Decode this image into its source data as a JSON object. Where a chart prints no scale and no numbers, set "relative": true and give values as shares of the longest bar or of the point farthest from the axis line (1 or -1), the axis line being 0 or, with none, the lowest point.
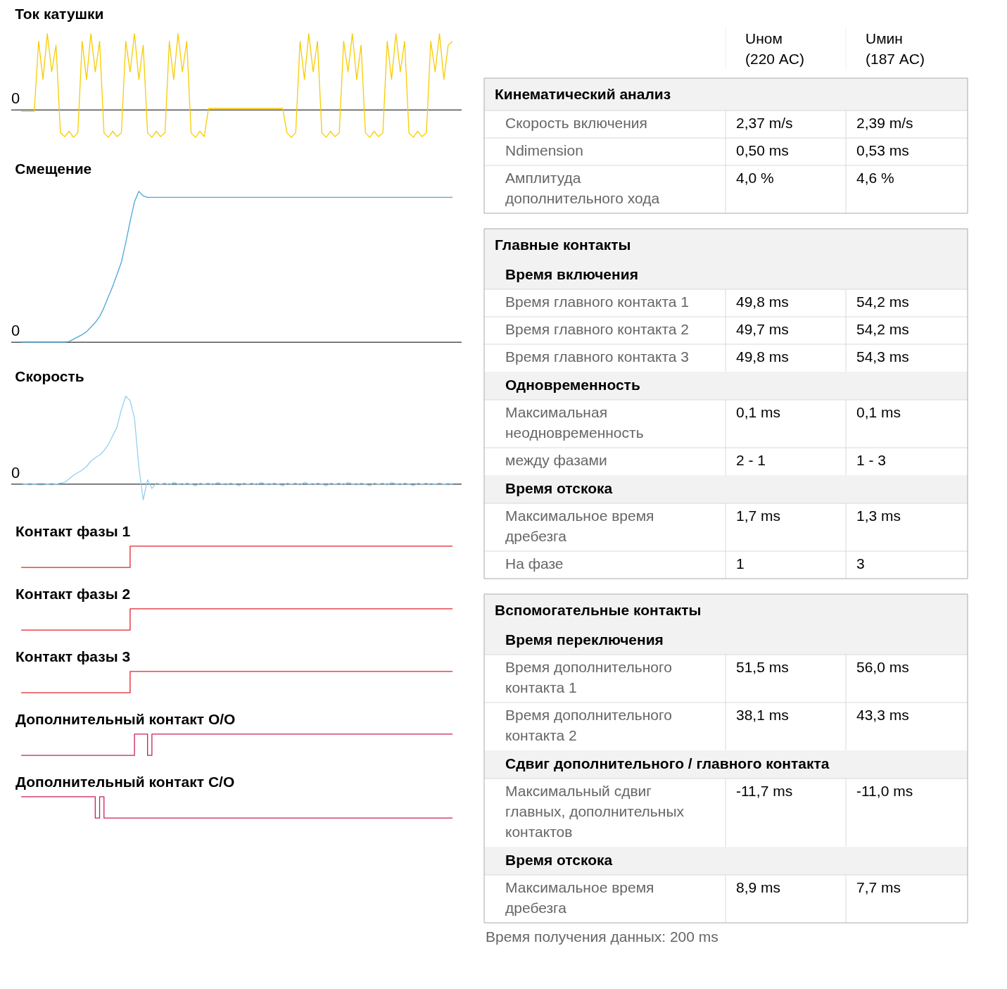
{
  "chart_data": [
    {
      "type": "line",
      "title": "Ток катушки",
      "relative": true,
      "categories": [
        null,
        null,
        null,
        null,
        null,
        null,
        null,
        null,
        null,
        null,
        null,
        null,
        null,
        null,
        null,
        null,
        null,
        null,
        null,
        null,
        null,
        null,
        null,
        null,
        null,
        null,
        null,
        null,
        null,
        null,
        null,
        null,
        null,
        null,
        null,
        null,
        null,
        null,
        null,
        null,
        null,
        null,
        null,
        null,
        null,
        null,
        null,
        null,
        null,
        null,
        null,
        null,
        null,
        null,
        null,
        null,
        null,
        null,
        null,
        null,
        null,
        null,
        null,
        null,
        null,
        null,
        null,
        null,
        null,
        null,
        null,
        null,
        null,
        null,
        null,
        null,
        null,
        null,
        null,
        null,
        null,
        null,
        null,
        null,
        null,
        null,
        null,
        null,
        null,
        null,
        null,
        null,
        null,
        null,
        null,
        null,
        null,
        null,
        null,
        null
      ],
      "series": [
        {
          "color": "#f7cc00",
          "values": [
            -0.02,
            -0.02,
            -0.02,
            -0.02,
            0.9,
            0.4,
            1.0,
            0.5,
            0.85,
            -0.3,
            -0.35,
            -0.28,
            -0.36,
            -0.3,
            0.9,
            0.4,
            1.0,
            0.5,
            0.9,
            -0.3,
            -0.36,
            -0.28,
            -0.35,
            -0.3,
            0.9,
            0.5,
            1.0,
            0.4,
            0.85,
            -0.3,
            -0.36,
            -0.28,
            -0.35,
            -0.3,
            0.9,
            0.4,
            1.0,
            0.5,
            0.9,
            -0.3,
            -0.36,
            -0.28,
            -0.35,
            0.02,
            0.02,
            0.02,
            0.02,
            0.02,
            0.02,
            0.02,
            0.02,
            0.02,
            0.02,
            0.02,
            0.02,
            0.02,
            0.02,
            0.02,
            0.02,
            0.02,
            0.02,
            -0.3,
            -0.36,
            -0.3,
            0.9,
            0.4,
            1.0,
            0.5,
            0.9,
            -0.3,
            -0.36,
            -0.28,
            -0.35,
            -0.3,
            0.9,
            0.5,
            1.0,
            0.4,
            0.85,
            -0.3,
            -0.36,
            -0.28,
            -0.35,
            -0.3,
            0.9,
            0.4,
            1.0,
            0.5,
            0.9,
            -0.3,
            -0.36,
            -0.28,
            -0.35,
            -0.3,
            0.9,
            0.5,
            1.0,
            0.4,
            0.85,
            0.9
          ]
        }
      ],
      "ref_lines": [
        {
          "axis": "y",
          "value": 0,
          "label": "0",
          "color": "#555555"
        }
      ]
    },
    {
      "type": "line",
      "title": "Смещение",
      "relative": true,
      "categories": [
        null,
        null,
        null,
        null,
        null,
        null,
        null,
        null,
        null,
        null,
        null,
        null,
        null,
        null,
        null,
        null,
        null,
        null,
        null,
        null,
        null,
        null,
        null,
        null,
        null,
        null,
        null,
        null,
        null,
        null,
        null,
        null,
        null,
        null,
        null,
        null,
        null,
        null,
        null,
        null,
        null,
        null,
        null,
        null,
        null,
        null,
        null,
        null,
        null,
        null,
        null,
        null,
        null,
        null,
        null,
        null,
        null,
        null,
        null,
        null,
        null,
        null,
        null,
        null,
        null,
        null,
        null,
        null,
        null,
        null,
        null,
        null,
        null,
        null,
        null,
        null,
        null,
        null,
        null,
        null,
        null,
        null,
        null,
        null,
        null,
        null,
        null,
        null,
        null,
        null,
        null,
        null,
        null,
        null,
        null,
        null,
        null,
        null,
        null,
        null
      ],
      "series": [
        {
          "color": "#4ba6d6",
          "values": [
            0,
            0,
            0,
            0,
            0,
            0,
            0,
            0,
            0,
            0,
            0,
            0.005,
            0.02,
            0.035,
            0.05,
            0.07,
            0.1,
            0.13,
            0.17,
            0.23,
            0.3,
            0.37,
            0.45,
            0.53,
            0.66,
            0.8,
            0.93,
            1.0,
            0.97,
            0.96,
            0.96,
            0.96,
            0.96,
            0.96,
            0.96,
            0.96,
            0.96,
            0.96,
            0.96,
            0.96,
            0.96,
            0.96,
            0.96,
            0.96,
            0.96,
            0.96,
            0.96,
            0.96,
            0.96,
            0.96,
            0.96,
            0.96,
            0.96,
            0.96,
            0.96,
            0.96,
            0.96,
            0.96,
            0.96,
            0.96,
            0.96,
            0.96,
            0.96,
            0.96,
            0.96,
            0.96,
            0.96,
            0.96,
            0.96,
            0.96,
            0.96,
            0.96,
            0.96,
            0.96,
            0.96,
            0.96,
            0.96,
            0.96,
            0.96,
            0.96,
            0.96,
            0.96,
            0.96,
            0.96,
            0.96,
            0.96,
            0.96,
            0.96,
            0.96,
            0.96,
            0.96,
            0.96,
            0.96,
            0.96,
            0.96,
            0.96,
            0.96,
            0.96,
            0.96,
            0.96
          ]
        }
      ],
      "ref_lines": [
        {
          "axis": "y",
          "value": 0,
          "label": "0",
          "color": "#555555"
        }
      ]
    },
    {
      "type": "line",
      "title": "Скорость",
      "relative": true,
      "categories": [
        null,
        null,
        null,
        null,
        null,
        null,
        null,
        null,
        null,
        null,
        null,
        null,
        null,
        null,
        null,
        null,
        null,
        null,
        null,
        null,
        null,
        null,
        null,
        null,
        null,
        null,
        null,
        null,
        null,
        null,
        null,
        null,
        null,
        null,
        null,
        null,
        null,
        null,
        null,
        null,
        null,
        null,
        null,
        null,
        null,
        null,
        null,
        null,
        null,
        null,
        null,
        null,
        null,
        null,
        null,
        null,
        null,
        null,
        null,
        null,
        null,
        null,
        null,
        null,
        null,
        null,
        null,
        null,
        null,
        null,
        null,
        null,
        null,
        null,
        null,
        null,
        null,
        null,
        null,
        null,
        null,
        null,
        null,
        null,
        null,
        null,
        null,
        null,
        null,
        null,
        null,
        null,
        null,
        null,
        null,
        null,
        null,
        null,
        null,
        null
      ],
      "series": [
        {
          "color": "#94d0ee",
          "values": [
            -0.01,
            0,
            -0.01,
            0,
            -0.01,
            -0.01,
            0,
            -0.01,
            0,
            0.01,
            0.02,
            0.06,
            0.1,
            0.13,
            0.16,
            0.2,
            0.26,
            0.3,
            0.33,
            0.38,
            0.45,
            0.55,
            0.65,
            0.85,
            1.0,
            0.95,
            0.75,
            0.2,
            -0.18,
            0.05,
            -0.05,
            0.01,
            0,
            0.01,
            -0.01,
            0.02,
            0,
            -0.01,
            0.01,
            0,
            -0.02,
            0.01,
            0,
            0.01,
            -0.01,
            0.02,
            0,
            -0.01,
            0.01,
            0,
            -0.02,
            0.01,
            0,
            0.01,
            -0.01,
            0.02,
            0,
            -0.01,
            0.01,
            0,
            -0.02,
            0.01,
            0,
            0.01,
            -0.01,
            0.02,
            0,
            -0.01,
            0.01,
            0,
            -0.02,
            0.01,
            0,
            0.01,
            -0.01,
            0.02,
            0,
            -0.01,
            0.01,
            0,
            -0.02,
            0.01,
            0,
            0.01,
            -0.01,
            0.02,
            0,
            -0.01,
            0.01,
            0,
            -0.02,
            0.01,
            0,
            0.01,
            -0.01,
            0,
            0.01,
            0,
            -0.01,
            0
          ]
        }
      ],
      "ref_lines": [
        {
          "axis": "y",
          "value": 0,
          "label": "0",
          "color": "#555555"
        }
      ]
    },
    {
      "type": "step",
      "title": "Контакт фазы 1",
      "relative": true,
      "categories": [
        null,
        null,
        null,
        null,
        null,
        null,
        null,
        null,
        null,
        null,
        null,
        null,
        null,
        null,
        null,
        null,
        null,
        null,
        null,
        null,
        null,
        null,
        null,
        null,
        null,
        null,
        null,
        null,
        null,
        null,
        null,
        null,
        null,
        null,
        null,
        null,
        null,
        null,
        null,
        null,
        null,
        null,
        null,
        null,
        null,
        null,
        null,
        null,
        null,
        null,
        null,
        null,
        null,
        null,
        null,
        null,
        null,
        null,
        null,
        null,
        null,
        null,
        null,
        null,
        null,
        null,
        null,
        null,
        null,
        null,
        null,
        null,
        null,
        null,
        null,
        null,
        null,
        null,
        null,
        null,
        null,
        null,
        null,
        null,
        null,
        null,
        null,
        null,
        null,
        null,
        null,
        null,
        null,
        null,
        null,
        null,
        null,
        null,
        null,
        null
      ],
      "series": [
        {
          "color": "#e2232b",
          "values": [
            0,
            0,
            0,
            0,
            0,
            0,
            0,
            0,
            0,
            0,
            0,
            0,
            0,
            0,
            0,
            0,
            0,
            0,
            0,
            0,
            0,
            0,
            0,
            0,
            0,
            1,
            1,
            1,
            1,
            1,
            1,
            1,
            1,
            1,
            1,
            1,
            1,
            1,
            1,
            1,
            1,
            1,
            1,
            1,
            1,
            1,
            1,
            1,
            1,
            1,
            1,
            1,
            1,
            1,
            1,
            1,
            1,
            1,
            1,
            1,
            1,
            1,
            1,
            1,
            1,
            1,
            1,
            1,
            1,
            1,
            1,
            1,
            1,
            1,
            1,
            1,
            1,
            1,
            1,
            1,
            1,
            1,
            1,
            1,
            1,
            1,
            1,
            1,
            1,
            1,
            1,
            1,
            1,
            1,
            1,
            1,
            1,
            1,
            1,
            1
          ]
        }
      ]
    },
    {
      "type": "step",
      "title": "Контакт фазы 2",
      "relative": true,
      "categories": [
        null,
        null,
        null,
        null,
        null,
        null,
        null,
        null,
        null,
        null,
        null,
        null,
        null,
        null,
        null,
        null,
        null,
        null,
        null,
        null,
        null,
        null,
        null,
        null,
        null,
        null,
        null,
        null,
        null,
        null,
        null,
        null,
        null,
        null,
        null,
        null,
        null,
        null,
        null,
        null,
        null,
        null,
        null,
        null,
        null,
        null,
        null,
        null,
        null,
        null,
        null,
        null,
        null,
        null,
        null,
        null,
        null,
        null,
        null,
        null,
        null,
        null,
        null,
        null,
        null,
        null,
        null,
        null,
        null,
        null,
        null,
        null,
        null,
        null,
        null,
        null,
        null,
        null,
        null,
        null,
        null,
        null,
        null,
        null,
        null,
        null,
        null,
        null,
        null,
        null,
        null,
        null,
        null,
        null,
        null,
        null,
        null,
        null,
        null,
        null
      ],
      "series": [
        {
          "color": "#e2232b",
          "values": [
            0,
            0,
            0,
            0,
            0,
            0,
            0,
            0,
            0,
            0,
            0,
            0,
            0,
            0,
            0,
            0,
            0,
            0,
            0,
            0,
            0,
            0,
            0,
            0,
            0,
            1,
            1,
            1,
            1,
            1,
            1,
            1,
            1,
            1,
            1,
            1,
            1,
            1,
            1,
            1,
            1,
            1,
            1,
            1,
            1,
            1,
            1,
            1,
            1,
            1,
            1,
            1,
            1,
            1,
            1,
            1,
            1,
            1,
            1,
            1,
            1,
            1,
            1,
            1,
            1,
            1,
            1,
            1,
            1,
            1,
            1,
            1,
            1,
            1,
            1,
            1,
            1,
            1,
            1,
            1,
            1,
            1,
            1,
            1,
            1,
            1,
            1,
            1,
            1,
            1,
            1,
            1,
            1,
            1,
            1,
            1,
            1,
            1,
            1,
            1
          ]
        }
      ]
    },
    {
      "type": "step",
      "title": "Контакт фазы 3",
      "relative": true,
      "categories": [
        null,
        null,
        null,
        null,
        null,
        null,
        null,
        null,
        null,
        null,
        null,
        null,
        null,
        null,
        null,
        null,
        null,
        null,
        null,
        null,
        null,
        null,
        null,
        null,
        null,
        null,
        null,
        null,
        null,
        null,
        null,
        null,
        null,
        null,
        null,
        null,
        null,
        null,
        null,
        null,
        null,
        null,
        null,
        null,
        null,
        null,
        null,
        null,
        null,
        null,
        null,
        null,
        null,
        null,
        null,
        null,
        null,
        null,
        null,
        null,
        null,
        null,
        null,
        null,
        null,
        null,
        null,
        null,
        null,
        null,
        null,
        null,
        null,
        null,
        null,
        null,
        null,
        null,
        null,
        null,
        null,
        null,
        null,
        null,
        null,
        null,
        null,
        null,
        null,
        null,
        null,
        null,
        null,
        null,
        null,
        null,
        null,
        null,
        null,
        null
      ],
      "series": [
        {
          "color": "#e2232b",
          "values": [
            0,
            0,
            0,
            0,
            0,
            0,
            0,
            0,
            0,
            0,
            0,
            0,
            0,
            0,
            0,
            0,
            0,
            0,
            0,
            0,
            0,
            0,
            0,
            0,
            0,
            1,
            1,
            1,
            1,
            1,
            1,
            1,
            1,
            1,
            1,
            1,
            1,
            1,
            1,
            1,
            1,
            1,
            1,
            1,
            1,
            1,
            1,
            1,
            1,
            1,
            1,
            1,
            1,
            1,
            1,
            1,
            1,
            1,
            1,
            1,
            1,
            1,
            1,
            1,
            1,
            1,
            1,
            1,
            1,
            1,
            1,
            1,
            1,
            1,
            1,
            1,
            1,
            1,
            1,
            1,
            1,
            1,
            1,
            1,
            1,
            1,
            1,
            1,
            1,
            1,
            1,
            1,
            1,
            1,
            1,
            1,
            1,
            1,
            1,
            1
          ]
        }
      ]
    },
    {
      "type": "step",
      "title": "Дополнительный контакт O/O",
      "relative": true,
      "categories": [
        null,
        null,
        null,
        null,
        null,
        null,
        null,
        null,
        null,
        null,
        null,
        null,
        null,
        null,
        null,
        null,
        null,
        null,
        null,
        null,
        null,
        null,
        null,
        null,
        null,
        null,
        null,
        null,
        null,
        null,
        null,
        null,
        null,
        null,
        null,
        null,
        null,
        null,
        null,
        null,
        null,
        null,
        null,
        null,
        null,
        null,
        null,
        null,
        null,
        null,
        null,
        null,
        null,
        null,
        null,
        null,
        null,
        null,
        null,
        null,
        null,
        null,
        null,
        null,
        null,
        null,
        null,
        null,
        null,
        null,
        null,
        null,
        null,
        null,
        null,
        null,
        null,
        null,
        null,
        null,
        null,
        null,
        null,
        null,
        null,
        null,
        null,
        null,
        null,
        null,
        null,
        null,
        null,
        null,
        null,
        null,
        null,
        null,
        null,
        null
      ],
      "series": [
        {
          "color": "#c8205a",
          "values": [
            0,
            0,
            0,
            0,
            0,
            0,
            0,
            0,
            0,
            0,
            0,
            0,
            0,
            0,
            0,
            0,
            0,
            0,
            0,
            0,
            0,
            0,
            0,
            0,
            0,
            0,
            1,
            1,
            1,
            0,
            1,
            1,
            1,
            1,
            1,
            1,
            1,
            1,
            1,
            1,
            1,
            1,
            1,
            1,
            1,
            1,
            1,
            1,
            1,
            1,
            1,
            1,
            1,
            1,
            1,
            1,
            1,
            1,
            1,
            1,
            1,
            1,
            1,
            1,
            1,
            1,
            1,
            1,
            1,
            1,
            1,
            1,
            1,
            1,
            1,
            1,
            1,
            1,
            1,
            1,
            1,
            1,
            1,
            1,
            1,
            1,
            1,
            1,
            1,
            1,
            1,
            1,
            1,
            1,
            1,
            1,
            1,
            1,
            1,
            1
          ]
        }
      ]
    },
    {
      "type": "step",
      "title": "Дополнительный контакт C/O",
      "relative": true,
      "categories": [
        null,
        null,
        null,
        null,
        null,
        null,
        null,
        null,
        null,
        null,
        null,
        null,
        null,
        null,
        null,
        null,
        null,
        null,
        null,
        null,
        null,
        null,
        null,
        null,
        null,
        null,
        null,
        null,
        null,
        null,
        null,
        null,
        null,
        null,
        null,
        null,
        null,
        null,
        null,
        null,
        null,
        null,
        null,
        null,
        null,
        null,
        null,
        null,
        null,
        null,
        null,
        null,
        null,
        null,
        null,
        null,
        null,
        null,
        null,
        null,
        null,
        null,
        null,
        null,
        null,
        null,
        null,
        null,
        null,
        null,
        null,
        null,
        null,
        null,
        null,
        null,
        null,
        null,
        null,
        null,
        null,
        null,
        null,
        null,
        null,
        null,
        null,
        null,
        null,
        null,
        null,
        null,
        null,
        null,
        null,
        null,
        null,
        null,
        null,
        null
      ],
      "series": [
        {
          "color": "#c8205a",
          "values": [
            1,
            1,
            1,
            1,
            1,
            1,
            1,
            1,
            1,
            1,
            1,
            1,
            1,
            1,
            1,
            1,
            1,
            0,
            1,
            0,
            0,
            0,
            0,
            0,
            0,
            0,
            0,
            0,
            0,
            0,
            0,
            0,
            0,
            0,
            0,
            0,
            0,
            0,
            0,
            0,
            0,
            0,
            0,
            0,
            0,
            0,
            0,
            0,
            0,
            0,
            0,
            0,
            0,
            0,
            0,
            0,
            0,
            0,
            0,
            0,
            0,
            0,
            0,
            0,
            0,
            0,
            0,
            0,
            0,
            0,
            0,
            0,
            0,
            0,
            0,
            0,
            0,
            0,
            0,
            0,
            0,
            0,
            0,
            0,
            0,
            0,
            0,
            0,
            0,
            0,
            0,
            0,
            0,
            0,
            0,
            0,
            0,
            0,
            0,
            0
          ]
        }
      ]
    },
    {
      "type": "other",
      "title": "Кинематический анализ",
      "categories": [
        "Uном\n(220 AC)",
        "Uмин\n(187 AC)"
      ],
      "y_categories": [
        "Скорость включения",
        "Ndimension",
        "Амплитуда\nдополнительного хода"
      ],
      "cell_labels": [
        [
          "2,37 m/s",
          "2,39 m/s"
        ],
        [
          "0,50 ms",
          "0,53 ms"
        ],
        [
          "4,0 %",
          "4,6 %"
        ]
      ]
    },
    {
      "type": "other",
      "title": "Главные контакты",
      "categories": [
        null,
        null
      ],
      "y_categories": [
        "Время включения",
        "Время главного контакта 1",
        "Время главного контакта 2",
        "Время главного контакта 3",
        "Одновременность",
        "Максимальная\nнеодновременность",
        "между фазами",
        "Время отскока",
        "Максимальное время\nдребезга",
        "На фазе"
      ],
      "cell_labels": [
        [
          null,
          null
        ],
        [
          "49,8 ms",
          "54,2 ms"
        ],
        [
          "49,7 ms",
          "54,2 ms"
        ],
        [
          "49,8 ms",
          "54,3 ms"
        ],
        [
          null,
          null
        ],
        [
          "0,1 ms",
          "0,1 ms"
        ],
        [
          "2 - 1",
          "1 - 3"
        ],
        [
          null,
          null
        ],
        [
          "1,7 ms",
          "1,3 ms"
        ],
        [
          "1",
          "3"
        ]
      ]
    },
    {
      "type": "other",
      "title": "Вспомогательные контакты",
      "categories": [
        null,
        null
      ],
      "y_categories": [
        "Время переключения",
        "Время дополнительного\nконтакта 1",
        "Время дополнительного\nконтакта 2",
        "Сдвиг дополнительного / главного контакта",
        "Максимальный сдвиг\nглавных, дополнительных\nконтактов",
        "Время отскока",
        "Максимальное время\nдребезга"
      ],
      "cell_labels": [
        [
          null,
          null
        ],
        [
          "51,5 ms",
          "56,0 ms"
        ],
        [
          "38,1 ms",
          "43,3 ms"
        ],
        [
          null,
          null
        ],
        [
          "-11,7 ms",
          "-11,0 ms"
        ],
        [
          null,
          null
        ],
        [
          "8,9 ms",
          "7,7 ms"
        ]
      ],
      "annotations": [
        "Время получения данных: 200 ms"
      ]
    }
  ]
}
